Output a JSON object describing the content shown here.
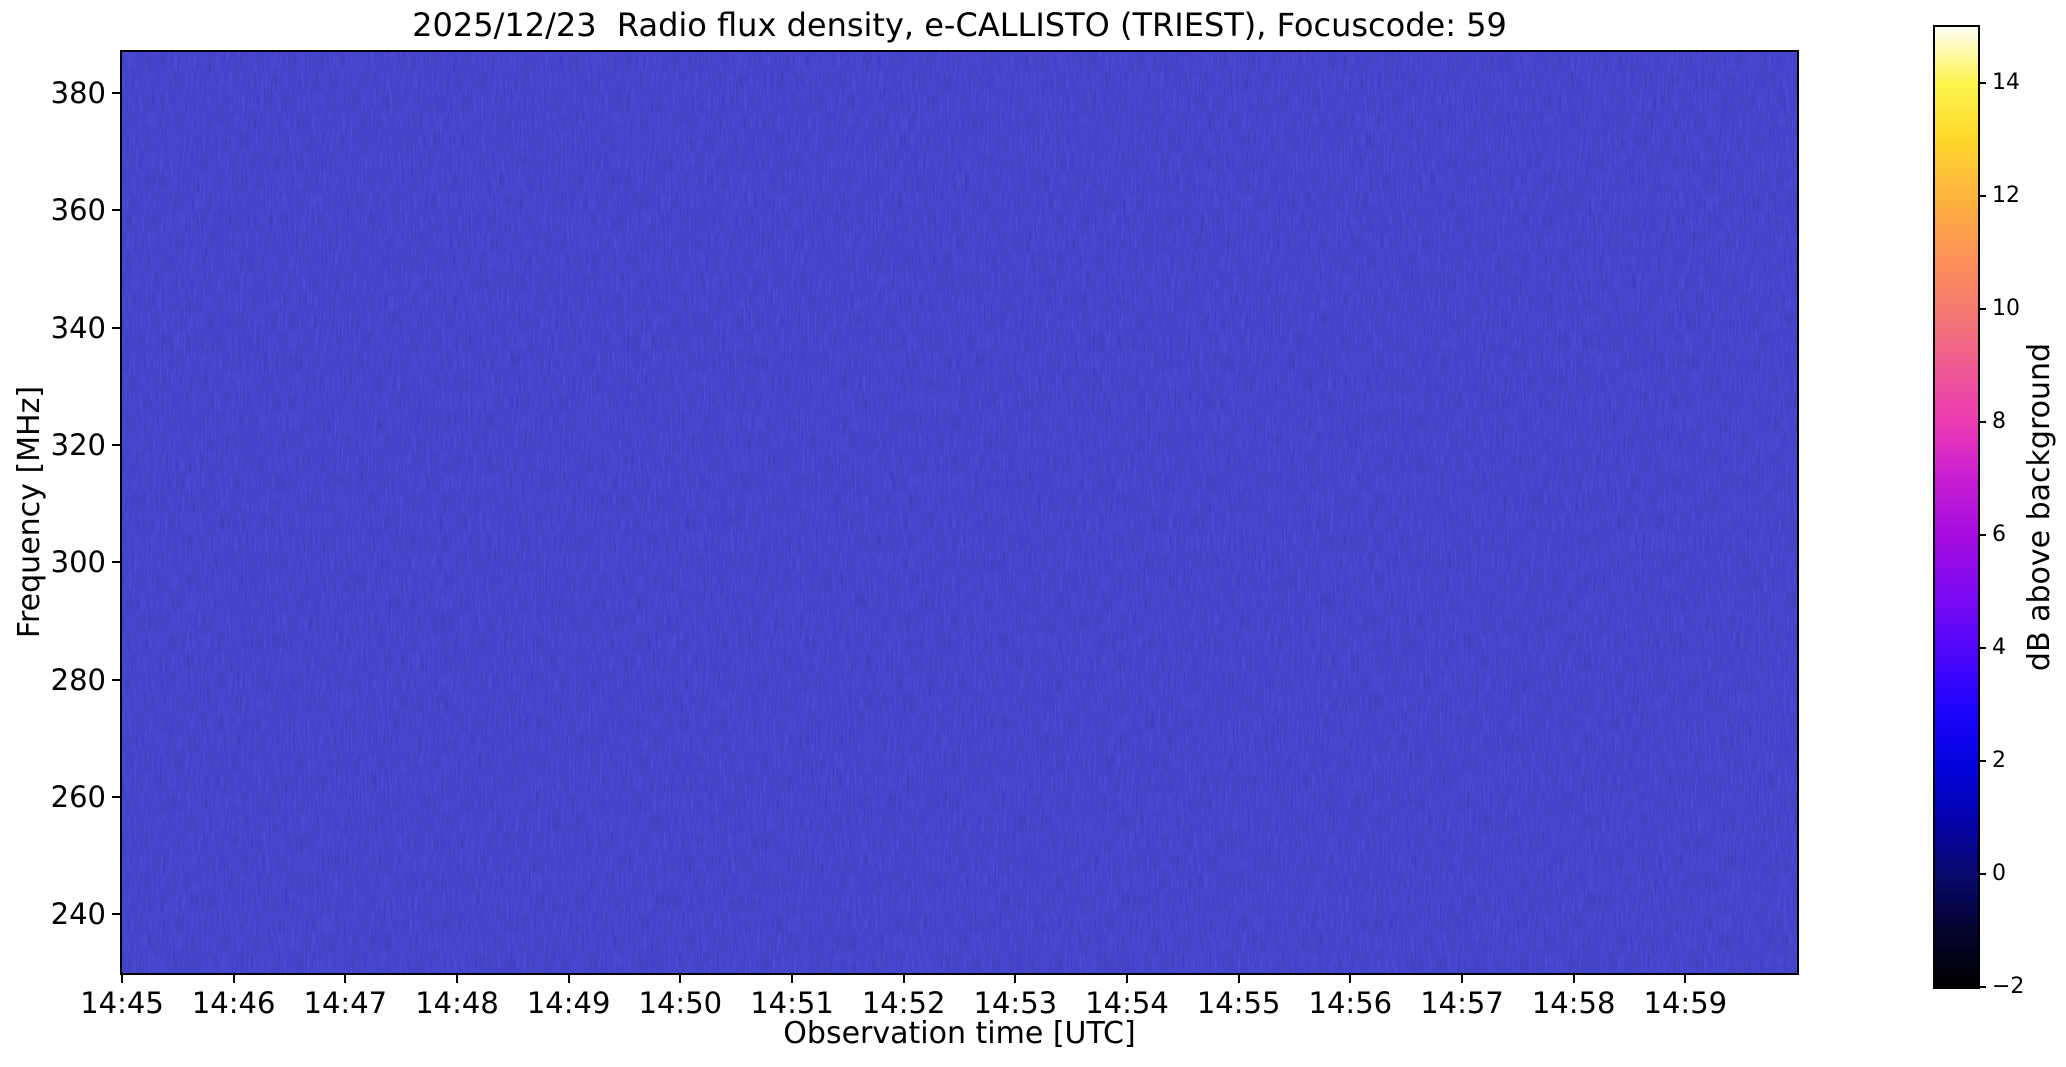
{
  "chart_data": {
    "type": "heatmap",
    "title": "2025/12/23  Radio flux density, e-CALLISTO (TRIEST), Focuscode: 59",
    "date": "2025/12/23",
    "instrument": "e-CALLISTO (TRIEST)",
    "focuscode": "59",
    "xlabel": "Observation time [UTC]",
    "ylabel": "Frequency [MHz]",
    "x_ticks": [
      "14:45",
      "14:46",
      "14:47",
      "14:48",
      "14:49",
      "14:50",
      "14:51",
      "14:52",
      "14:53",
      "14:54",
      "14:55",
      "14:56",
      "14:57",
      "14:58",
      "14:59"
    ],
    "x_range_utc": [
      "14:45",
      "15:00"
    ],
    "x_total_minutes": 15,
    "y_ticks": [
      380,
      360,
      340,
      320,
      300,
      280,
      260,
      240
    ],
    "ylim": [
      230,
      387
    ],
    "grid": false,
    "legend": "none",
    "plot_background_color": "#11119b",
    "background_level_db": 0,
    "data_summary": "Uniform quiet-sun background noise near 0 dB over the whole 230-387 MHz band from 14:45 to 15:00 UTC; no radio burst features visible, only fine vertical noise striations in dark navy blue.",
    "colorbar": {
      "label": "dB above background",
      "ticks": [
        14,
        12,
        10,
        8,
        6,
        4,
        2,
        0,
        -2
      ],
      "vmin": -2,
      "vmax": 15,
      "colormap": "gnuplot2",
      "stops": [
        {
          "value": 15,
          "color": "#fffff4"
        },
        {
          "value": 14,
          "color": "#fcf44c"
        },
        {
          "value": 13,
          "color": "#fed72c"
        },
        {
          "value": 12,
          "color": "#fdb53e"
        },
        {
          "value": 11,
          "color": "#fb9455"
        },
        {
          "value": 10,
          "color": "#f47a6e"
        },
        {
          "value": 9,
          "color": "#ee5b92"
        },
        {
          "value": 8,
          "color": "#ec3cb4"
        },
        {
          "value": 7,
          "color": "#c81ed2"
        },
        {
          "value": 6,
          "color": "#a50ce0"
        },
        {
          "value": 5,
          "color": "#7e0af0"
        },
        {
          "value": 4,
          "color": "#5206f6"
        },
        {
          "value": 3,
          "color": "#2004fe"
        },
        {
          "value": 2,
          "color": "#0404e0"
        },
        {
          "value": 1,
          "color": "#0303ae"
        },
        {
          "value": 0,
          "color": "#08086e"
        },
        {
          "value": -1,
          "color": "#040430"
        },
        {
          "value": -2,
          "color": "#000000"
        }
      ]
    }
  }
}
